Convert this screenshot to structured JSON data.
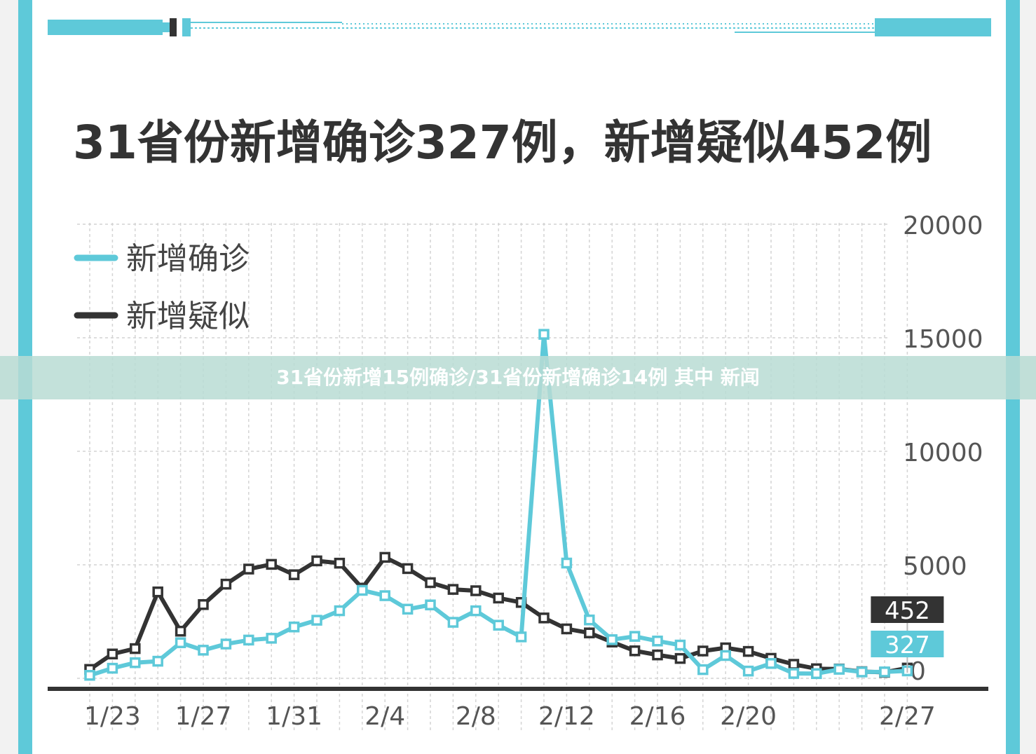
{
  "title": "31省份新增确诊327例，新增疑似452例",
  "overlay_caption": "31省份新增15例确诊/31省份新增确诊14例 其中 新闻",
  "colors": {
    "confirmed": "#5ec9d9",
    "suspected": "#333333",
    "frame": "#5ec9d9",
    "grid": "#d4d4d4"
  },
  "legend": [
    {
      "label": "新增确诊",
      "color": "#5ec9d9"
    },
    {
      "label": "新增疑似",
      "color": "#333333"
    }
  ],
  "chart_data": {
    "type": "line",
    "x_tick_labels": [
      "1/23",
      "1/27",
      "1/31",
      "2/4",
      "2/8",
      "2/12",
      "2/16",
      "2/20",
      "2/27"
    ],
    "y_tick_labels": [
      "20000",
      "15000",
      "10000",
      "5000",
      "0"
    ],
    "ylim": [
      0,
      20000
    ],
    "y_axis_side": "right",
    "grid": true,
    "legend_position": "top-left",
    "end_labels": {
      "suspected": "452",
      "confirmed": "327"
    },
    "x": [
      "1/22",
      "1/23",
      "1/24",
      "1/25",
      "1/26",
      "1/27",
      "1/28",
      "1/29",
      "1/30",
      "1/31",
      "2/1",
      "2/2",
      "2/3",
      "2/4",
      "2/5",
      "2/6",
      "2/7",
      "2/8",
      "2/9",
      "2/10",
      "2/11",
      "2/12",
      "2/13",
      "2/14",
      "2/15",
      "2/16",
      "2/17",
      "2/18",
      "2/19",
      "2/20",
      "2/21",
      "2/22",
      "2/23",
      "2/24",
      "2/25",
      "2/26",
      "2/27"
    ],
    "series": [
      {
        "name": "新增疑似",
        "values": [
          393,
          1072,
          1309,
          3806,
          2077,
          3248,
          4148,
          4812,
          5019,
          4562,
          5173,
          5072,
          3971,
          5328,
          4833,
          4214,
          3916,
          3858,
          3536,
          3342,
          2659,
          2177,
          2000,
          1597,
          1211,
          1030,
          875,
          1203,
          1342,
          1185,
          882,
          617,
          422,
          410,
          292,
          265,
          452
        ]
      },
      {
        "name": "新增确诊",
        "values": [
          131,
          444,
          688,
          753,
          1567,
          1239,
          1510,
          1685,
          1765,
          2262,
          2558,
          2976,
          3874,
          3640,
          3046,
          3233,
          2467,
          2974,
          2339,
          1824,
          15151,
          5077,
          2571,
          1703,
          1847,
          1643,
          1465,
          383,
          1004,
          320,
          654,
          214,
          207,
          397,
          280,
          283,
          327
        ]
      }
    ]
  }
}
